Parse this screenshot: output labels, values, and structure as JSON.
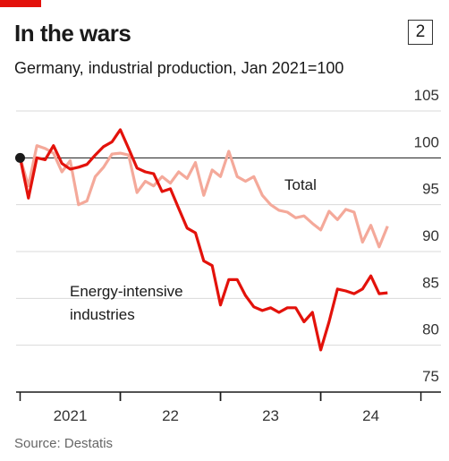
{
  "chart_data": {
    "type": "line",
    "title": "In the wars",
    "badge": "2",
    "subtitle": "Germany, industrial production, Jan 2021=100",
    "source": "Source: Destatis",
    "x": [
      2021,
      2021.083,
      2021.167,
      2021.25,
      2021.333,
      2021.417,
      2021.5,
      2021.583,
      2021.667,
      2021.75,
      2021.833,
      2021.917,
      2022,
      2022.083,
      2022.167,
      2022.25,
      2022.333,
      2022.417,
      2022.5,
      2022.583,
      2022.667,
      2022.75,
      2022.833,
      2022.917,
      2023,
      2023.083,
      2023.167,
      2023.25,
      2023.333,
      2023.417,
      2023.5,
      2023.583,
      2023.667,
      2023.75,
      2023.833,
      2023.917,
      2024,
      2024.083,
      2024.167,
      2024.25,
      2024.333,
      2024.417,
      2024.5,
      2024.583,
      2024.667
    ],
    "series": [
      {
        "name": "Total",
        "color": "#f4a99a",
        "values": [
          100,
          97,
          101.3,
          101,
          100.5,
          98.5,
          99.7,
          95,
          95.4,
          98,
          99,
          100.4,
          100.5,
          100.3,
          96.3,
          97.5,
          97,
          98,
          97.3,
          98.5,
          97.8,
          99.5,
          96,
          98.7,
          98,
          100.7,
          98,
          97.5,
          98,
          96,
          95,
          94.4,
          94.2,
          93.6,
          93.8,
          93,
          92.3,
          94.3,
          93.4,
          94.5,
          94.2,
          91,
          92.8,
          90.5,
          92.7
        ]
      },
      {
        "name": "Energy-intensive industries",
        "color": "#e3120b",
        "values": [
          100,
          95.7,
          100,
          99.8,
          101.3,
          99.4,
          98.8,
          99,
          99.3,
          100.3,
          101.2,
          101.7,
          103,
          101,
          98.9,
          98.5,
          98.3,
          96.4,
          96.7,
          94.6,
          92.5,
          92,
          89,
          88.5,
          84.3,
          87,
          87,
          85.3,
          84.1,
          83.7,
          84,
          83.5,
          84,
          84,
          82.5,
          83.5,
          79.5,
          82.5,
          86,
          85.8,
          85.5,
          86,
          87.4,
          85.5,
          85.6
        ]
      }
    ],
    "xlim": [
      2020.96,
      2025.2
    ],
    "xticks": [
      {
        "value": 2021.5,
        "label": "2021"
      },
      {
        "value": 2022.5,
        "label": "22"
      },
      {
        "value": 2023.5,
        "label": "23"
      },
      {
        "value": 2024.5,
        "label": "24"
      }
    ],
    "ylim": [
      75,
      105
    ],
    "yticks": [
      75,
      80,
      85,
      90,
      95,
      100,
      105
    ],
    "baseline": 100,
    "grid": true
  }
}
